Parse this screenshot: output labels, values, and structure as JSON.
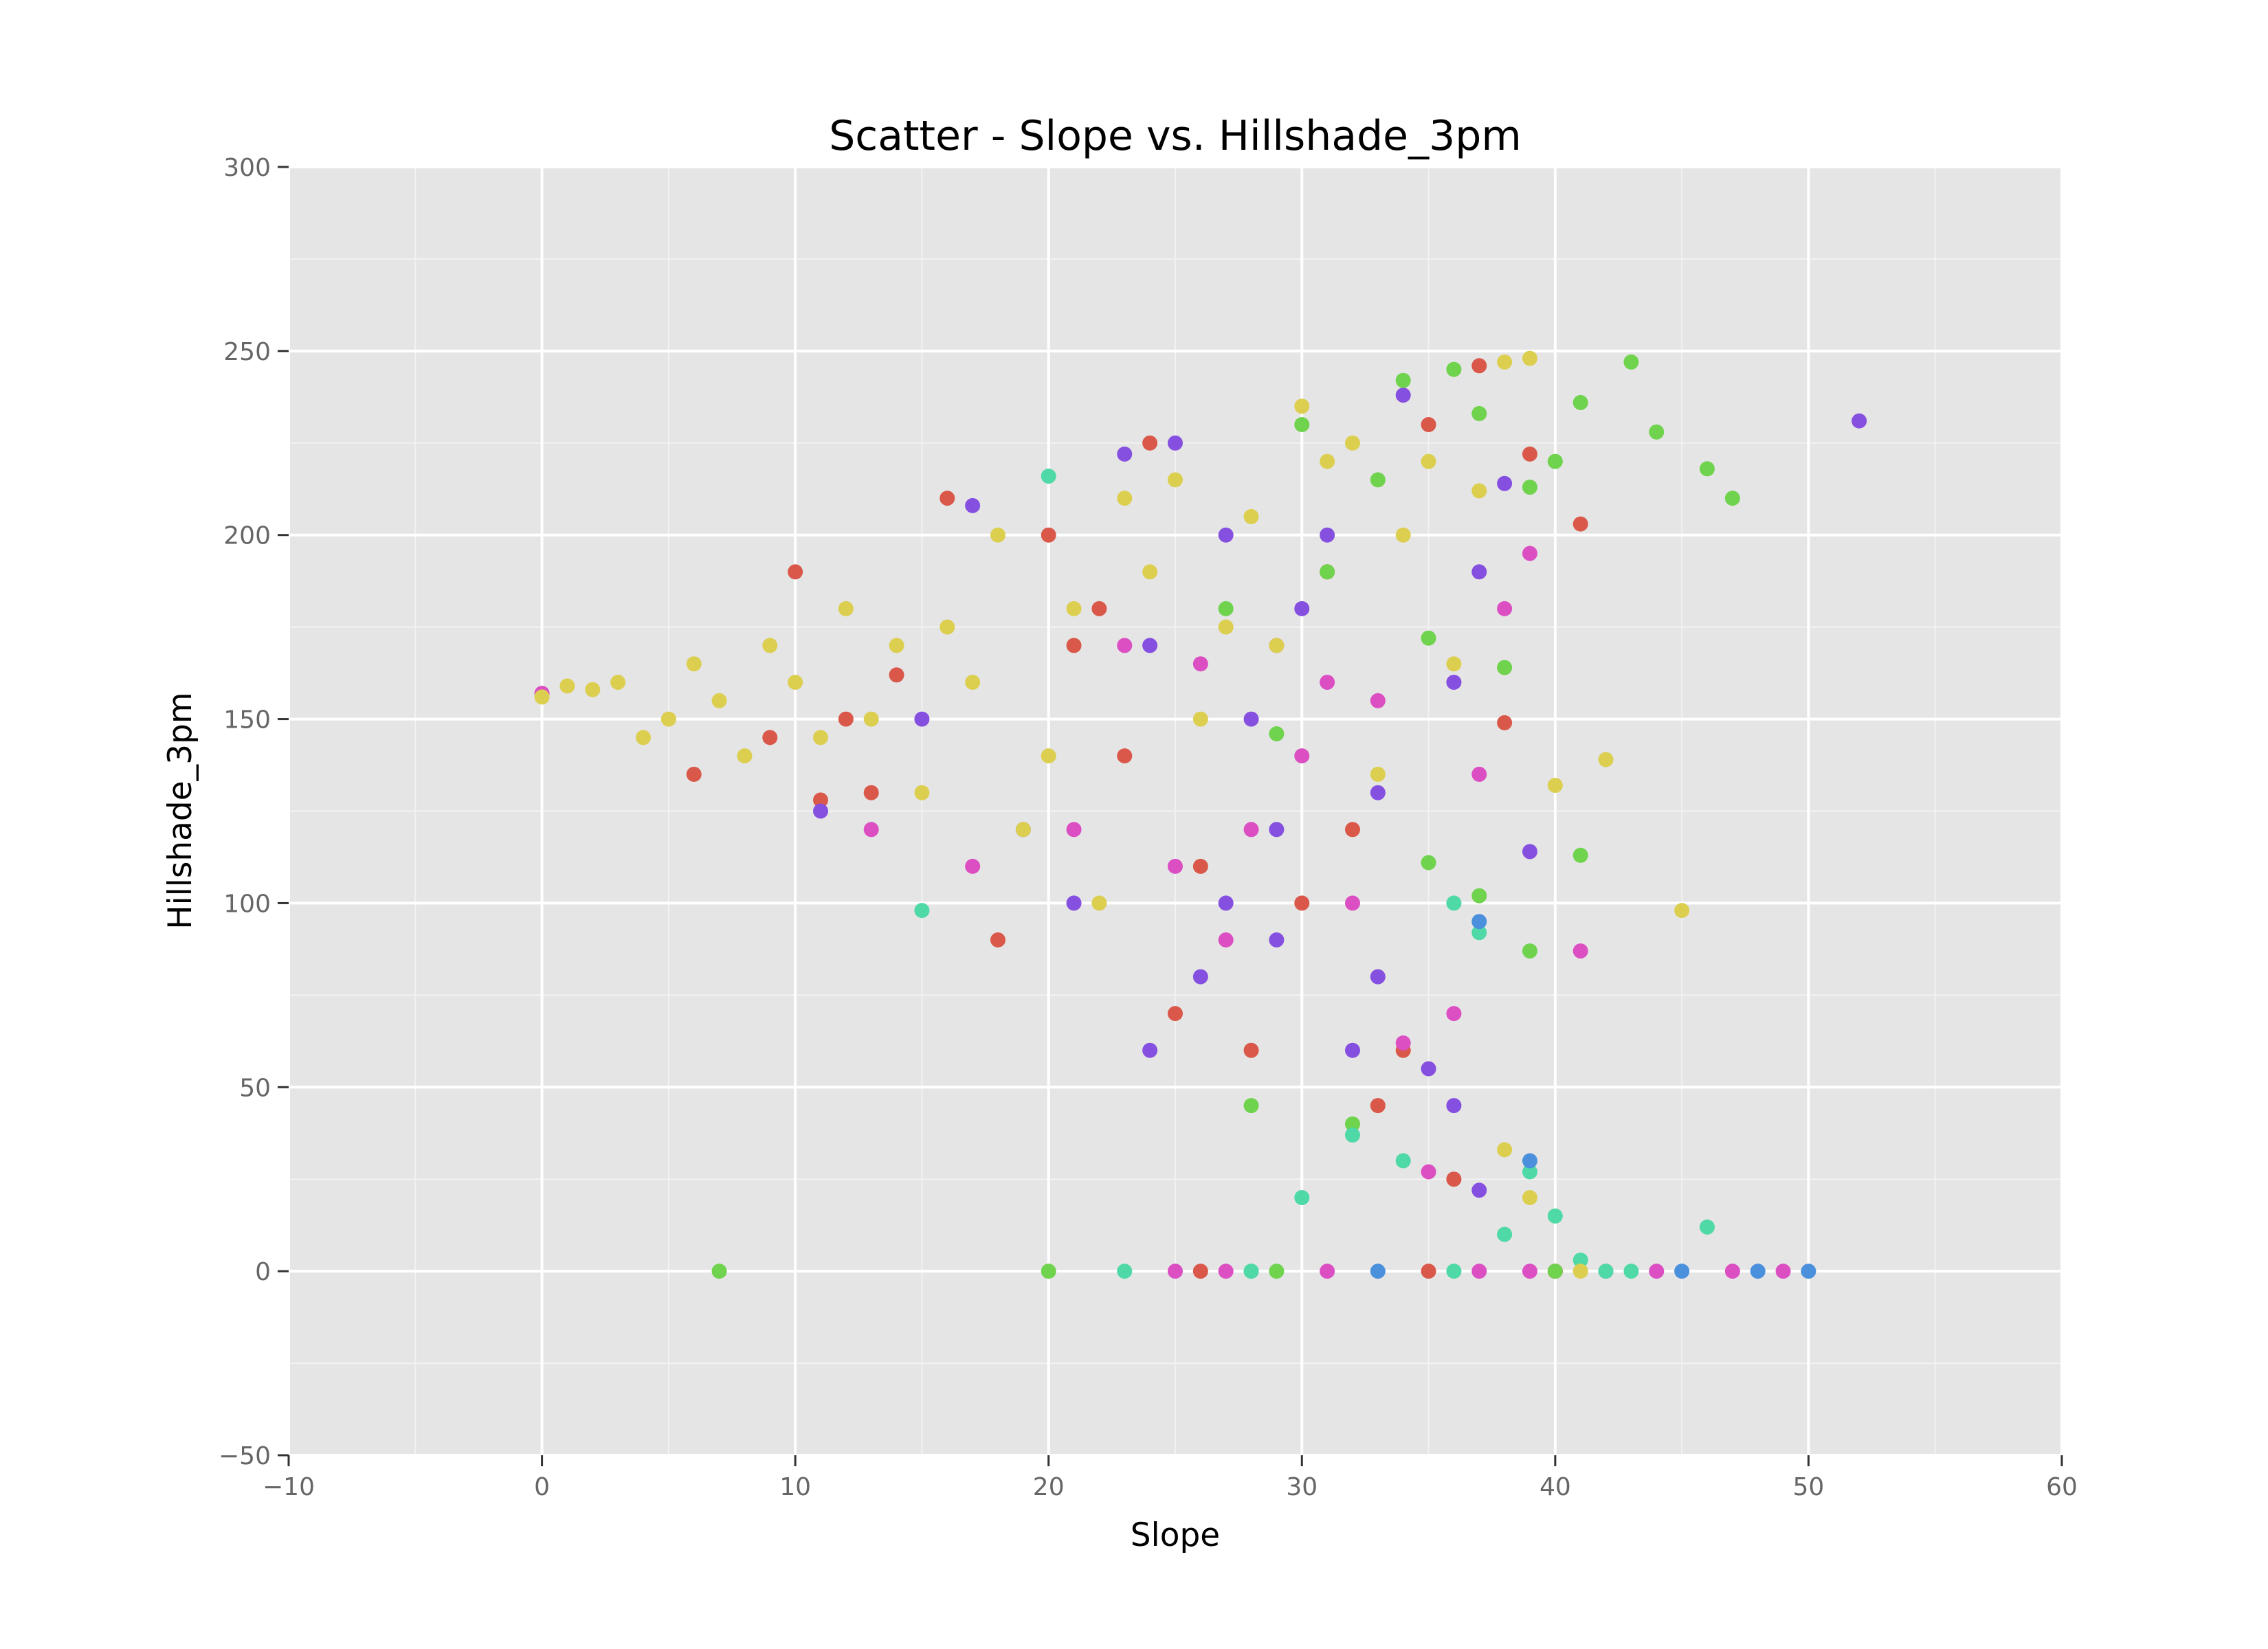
{
  "chart_data": {
    "type": "scatter",
    "title": "Scatter - Slope vs. Hillshade_3pm",
    "xlabel": "Slope",
    "ylabel": "Hillshade_3pm",
    "xlim": [
      -10,
      60
    ],
    "ylim": [
      -50,
      300
    ],
    "xticks": [
      -10,
      0,
      10,
      20,
      30,
      40,
      50,
      60
    ],
    "yticks": [
      -50,
      0,
      50,
      100,
      150,
      200,
      250,
      300
    ],
    "xtick_labels": [
      "−10",
      "0",
      "10",
      "20",
      "30",
      "40",
      "50",
      "60"
    ],
    "ytick_labels": [
      "−50",
      "0",
      "50",
      "100",
      "150",
      "200",
      "250",
      "300"
    ],
    "grid": true,
    "legend": "none",
    "colors": {
      "background": "#e5e5e5",
      "grid_major": "#ffffff",
      "grid_minor": "#f2f2f2",
      "yellow": "#dccf50",
      "red": "#d9584a",
      "purple": "#8550e0",
      "magenta": "#dc4fc3",
      "green": "#6fd34d",
      "teal": "#4fd9a6",
      "blue": "#4a90dc"
    },
    "series": [
      {
        "color": "#d9584a",
        "x": [
          6,
          9,
          10,
          11,
          12,
          13,
          14,
          16,
          18,
          20,
          21,
          22,
          23,
          24,
          25,
          26,
          28,
          30,
          31,
          32,
          33,
          34,
          35,
          36,
          37,
          38,
          39,
          40,
          41,
          26,
          35,
          40
        ],
        "y": [
          135,
          145,
          190,
          128,
          150,
          130,
          162,
          210,
          90,
          200,
          170,
          180,
          140,
          225,
          70,
          110,
          60,
          100,
          190,
          120,
          45,
          60,
          230,
          25,
          246,
          149,
          222,
          0,
          203,
          0,
          0,
          0
        ]
      },
      {
        "color": "#8550e0",
        "x": [
          11,
          15,
          17,
          19,
          21,
          23,
          24,
          25,
          26,
          27,
          28,
          29,
          30,
          31,
          32,
          33,
          34,
          35,
          36,
          37,
          38,
          39,
          52,
          29,
          24,
          27,
          33,
          36,
          37
        ],
        "y": [
          125,
          150,
          208,
          120,
          100,
          222,
          60,
          225,
          80,
          200,
          150,
          120,
          180,
          200,
          60,
          130,
          238,
          55,
          160,
          190,
          214,
          114,
          231,
          90,
          170,
          100,
          80,
          45,
          22
        ],
        "note_extra": null
      },
      {
        "color": "#dc4fc3",
        "x": [
          0,
          13,
          17,
          21,
          23,
          25,
          26,
          27,
          28,
          29,
          30,
          31,
          32,
          33,
          34,
          35,
          36,
          37,
          38,
          39,
          41,
          44,
          47,
          49,
          25,
          27,
          31,
          37,
          39,
          42
        ],
        "y": [
          157,
          120,
          110,
          120,
          170,
          110,
          165,
          90,
          120,
          170,
          140,
          160,
          100,
          155,
          62,
          27,
          70,
          135,
          180,
          195,
          87,
          0,
          0,
          0,
          0,
          0,
          0,
          0,
          0,
          0
        ]
      },
      {
        "color": "#6fd34d",
        "x": [
          7,
          20,
          27,
          28,
          29,
          30,
          31,
          32,
          33,
          34,
          35,
          36,
          37,
          38,
          39,
          40,
          41,
          43,
          44,
          46,
          47,
          29,
          40,
          35,
          37,
          39,
          41
        ],
        "y": [
          0,
          0,
          180,
          45,
          146,
          230,
          190,
          40,
          215,
          242,
          172,
          245,
          233,
          164,
          213,
          220,
          236,
          247,
          228,
          218,
          210,
          0,
          0,
          111,
          102,
          87,
          113
        ]
      },
      {
        "color": "#4fd9a6",
        "x": [
          15,
          20,
          23,
          28,
          30,
          32,
          34,
          36,
          37,
          38,
          39,
          40,
          41,
          46,
          28,
          36,
          42,
          43
        ],
        "y": [
          98,
          216,
          0,
          0,
          20,
          37,
          30,
          100,
          92,
          10,
          27,
          15,
          3,
          12,
          0,
          0,
          0,
          0
        ]
      },
      {
        "color": "#4a90dc",
        "x": [
          33,
          37,
          39,
          45,
          48,
          50
        ],
        "y": [
          0,
          95,
          30,
          0,
          0,
          0
        ]
      },
      {
        "color": "#dccf50",
        "x": [
          0,
          1,
          2,
          3,
          4,
          5,
          6,
          7,
          8,
          9,
          10,
          11,
          12,
          13,
          14,
          15,
          16,
          17,
          18,
          19,
          20,
          21,
          22,
          23,
          24,
          25,
          26,
          27,
          28,
          29,
          30,
          31,
          32,
          33,
          34,
          35,
          36,
          37,
          38,
          39,
          40,
          41,
          42,
          45,
          38,
          39
        ],
        "y": [
          156,
          159,
          158,
          160,
          145,
          150,
          165,
          155,
          140,
          170,
          160,
          145,
          180,
          150,
          170,
          130,
          175,
          160,
          200,
          120,
          140,
          180,
          100,
          210,
          190,
          215,
          150,
          175,
          205,
          170,
          235,
          220,
          225,
          135,
          200,
          220,
          165,
          212,
          247,
          248,
          132,
          0,
          139,
          98,
          33,
          20
        ]
      }
    ]
  }
}
